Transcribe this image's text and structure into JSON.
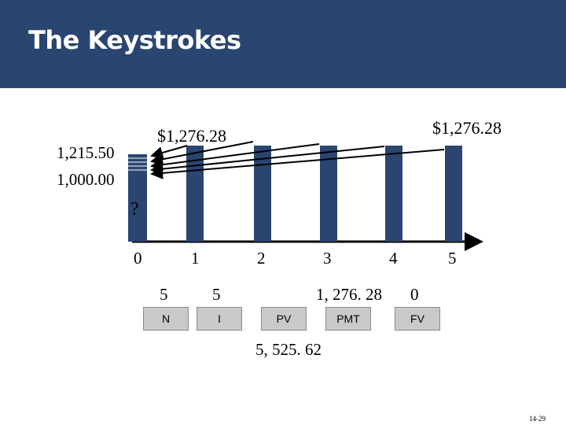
{
  "header": {
    "title": "The Keystrokes"
  },
  "timeline": {
    "periods": [
      "0",
      "1",
      "2",
      "3",
      "4",
      "5"
    ],
    "unknown_label": "?",
    "future_value_left": "$1,276.28",
    "future_value_right": "$1,276.28",
    "stack_label_top": "1,215.50",
    "stack_label_bottom": "1,000.00"
  },
  "calculator": {
    "keys": [
      {
        "label": "N",
        "value": "5"
      },
      {
        "label": "I",
        "value": "5"
      },
      {
        "label": "PV",
        "value": ""
      },
      {
        "label": "PMT",
        "value": "1, 276. 28"
      },
      {
        "label": "FV",
        "value": "0"
      }
    ],
    "result": "5, 525. 62"
  },
  "colors": {
    "header": "#2a4570",
    "bar": "#2a4570",
    "key": "#c9c9c9"
  },
  "footer": {
    "slide_number": "14-29"
  }
}
